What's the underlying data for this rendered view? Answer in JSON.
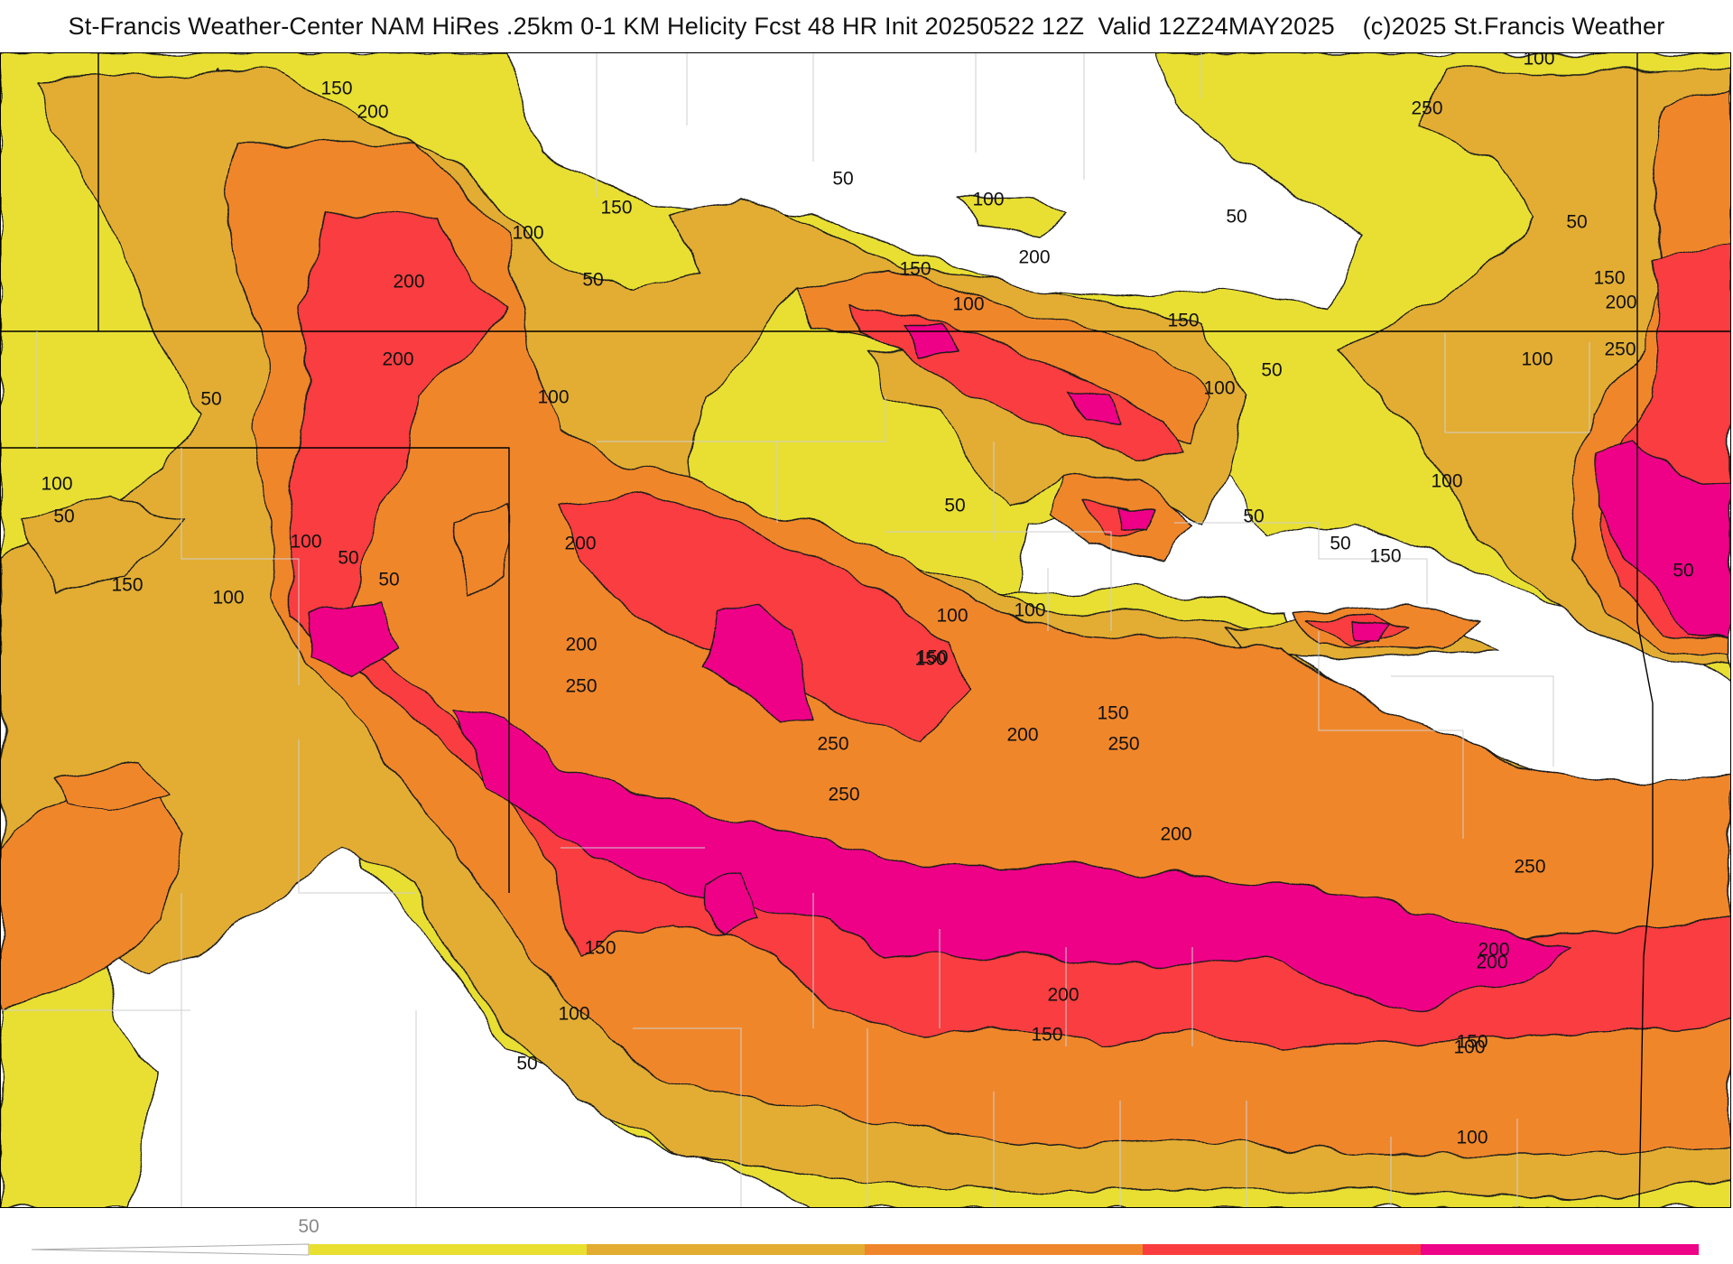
{
  "title": "St-Francis Weather-Center NAM HiRes .25km 0-1 KM Helicity Fcst 48 HR Init 20250522 12Z  Valid 12Z24MAY2025    (c)2025 St.Francis Weather",
  "colors": {
    "band_50": "#e8df30",
    "band_100": "#e2ad30",
    "band_150": "#f0862b",
    "band_200": "#f93d3f",
    "band_250": "#ee0587",
    "background": "#ffffff",
    "border": "#000000",
    "county_lines": "#d0d0d0"
  },
  "colorbar": {
    "labels": [
      "50"
    ],
    "levels": [
      50,
      100,
      150,
      200,
      250
    ]
  },
  "contour_labels": [
    "100",
    "150",
    "200",
    "100",
    "200",
    "50",
    "200",
    "50",
    "100",
    "50",
    "100",
    "50",
    "150",
    "50",
    "100",
    "200",
    "100",
    "150",
    "100",
    "150",
    "50",
    "100",
    "150",
    "200",
    "250",
    "200",
    "250",
    "150",
    "250",
    "250",
    "200",
    "150",
    "200",
    "150",
    "100",
    "50",
    "100",
    "50",
    "150",
    "200",
    "50",
    "100",
    "150",
    "100",
    "50",
    "100",
    "150",
    "200",
    "250",
    "100",
    "50",
    "100",
    "150",
    "150",
    "200",
    "250",
    "50",
    "250",
    "100",
    "50",
    "50",
    "150",
    "100",
    "200"
  ]
}
